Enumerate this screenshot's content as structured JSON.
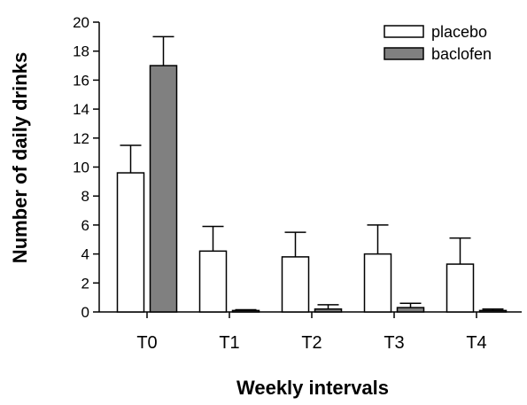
{
  "chart_data": {
    "type": "bar",
    "title": "",
    "xlabel": "Weekly intervals",
    "ylabel": "Number of daily drinks",
    "categories": [
      "T0",
      "T1",
      "T2",
      "T3",
      "T4"
    ],
    "ylim": [
      0,
      20
    ],
    "yticks": [
      0,
      2,
      4,
      6,
      8,
      10,
      12,
      14,
      16,
      18,
      20
    ],
    "yticks_labels": [
      "0",
      "2",
      "4",
      "6",
      "8",
      "10",
      "12",
      "14",
      "16",
      "18",
      "20"
    ],
    "series": [
      {
        "name": "placebo",
        "values": [
          9.6,
          4.2,
          3.8,
          4.0,
          3.3
        ],
        "errors": [
          1.9,
          1.7,
          1.7,
          2.0,
          1.8
        ],
        "color": "#ffffff"
      },
      {
        "name": "baclofen",
        "values": [
          17.0,
          0.1,
          0.2,
          0.3,
          0.1
        ],
        "errors": [
          2.0,
          0.05,
          0.3,
          0.3,
          0.1
        ],
        "color": "#808080"
      }
    ],
    "legend_position": "top-right",
    "grid": false
  }
}
